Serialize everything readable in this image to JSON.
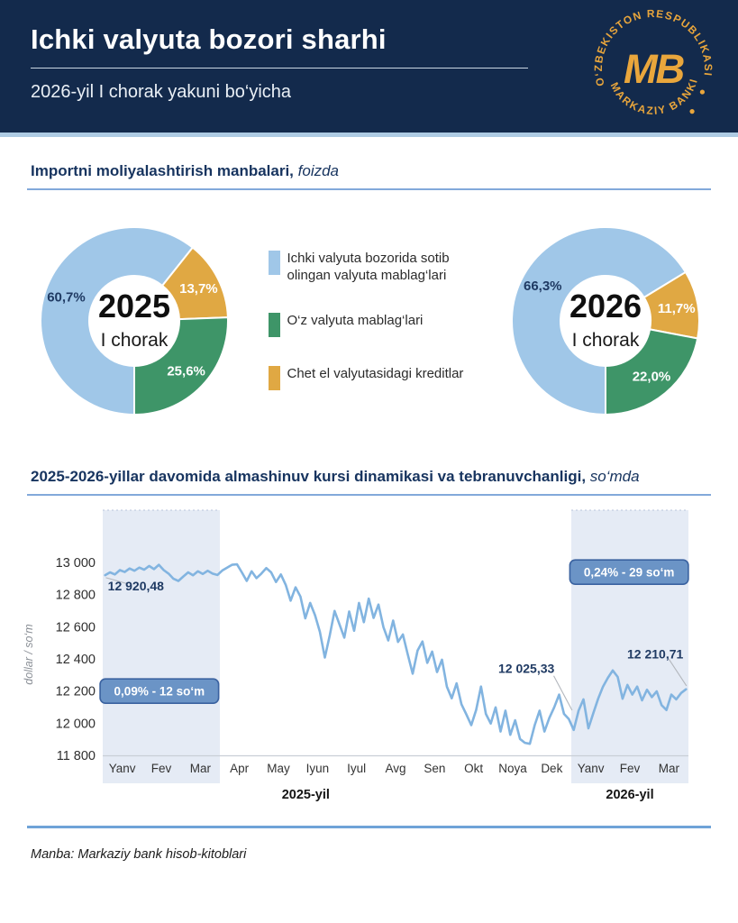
{
  "header": {
    "title": "Ichki valyuta  bozori sharhi",
    "subtitle": "2026-yil I chorak yakuni bo‘yicha",
    "logo": {
      "top_text": "O‘ZBEKISTON RESPUBLIKASI",
      "bottom_text": "MARKAZIY BANKI",
      "monogram": "MB"
    }
  },
  "colors": {
    "header_navy": "#132A4C",
    "logo_gold": "#E9A63C",
    "donut_blue": "#A0C7E8",
    "donut_green": "#3E9568",
    "donut_gold": "#E0A843",
    "line_blue": "#82B4E0",
    "band_fill": "#E5EBF5",
    "band_edge": "#B9C6DC",
    "badge_fill": "#6B94C6",
    "badge_border": "#3A62A0",
    "annotation_navy": "#1F3A63",
    "leader_gray": "#B3B7BD",
    "axis_line": "#C9CED6"
  },
  "section1": {
    "title_bold": "Importni moliyalashtirish manbalari,",
    "title_italic": "foizda",
    "legend": [
      {
        "label": "Ichki valyuta bozorida sotib olingan valyuta mablag‘lari",
        "color": "#A0C7E8"
      },
      {
        "label": "O‘z valyuta mablag‘lari",
        "color": "#3E9568"
      },
      {
        "label": "Chet el valyutasidagi kreditlar",
        "color": "#E0A843"
      }
    ]
  },
  "section2": {
    "title_bold": "2025-2026-yillar davomida almashinuv kursi dinamikasi va tebranuvchanligi,",
    "title_italic": "so‘mda"
  },
  "footer": {
    "source": "Manba: Markaziy bank hisob-kitoblari"
  },
  "chart_data": [
    {
      "type": "pie",
      "title": "2025",
      "subtitle": "I chorak",
      "start_angle_from_top": 180,
      "segments": [
        {
          "name": "Ichki valyuta bozorida sotib olingan valyuta mablag‘lari",
          "value": 60.7,
          "display": "60,7%",
          "color": "#A0C7E8",
          "label_color": "#1F3A63"
        },
        {
          "name": "Chet el valyutasidagi kreditlar",
          "value": 13.7,
          "display": "13,7%",
          "color": "#E0A843",
          "label_color": "#FFFFFF"
        },
        {
          "name": "O‘z valyuta mablag‘lari",
          "value": 25.6,
          "display": "25,6%",
          "color": "#3E9568",
          "label_color": "#FFFFFF"
        }
      ]
    },
    {
      "type": "pie",
      "title": "2026",
      "subtitle": "I chorak",
      "start_angle_from_top": 180,
      "segments": [
        {
          "name": "Ichki valyuta bozorida sotib olingan valyuta mablag‘lari",
          "value": 66.3,
          "display": "66,3%",
          "color": "#A0C7E8",
          "label_color": "#1F3A63"
        },
        {
          "name": "Chet el valyutasidagi kreditlar",
          "value": 11.7,
          "display": "11,7%",
          "color": "#E0A843",
          "label_color": "#FFFFFF"
        },
        {
          "name": "O‘z valyuta mablag‘lari",
          "value": 22.0,
          "display": "22,0%",
          "color": "#3E9568",
          "label_color": "#FFFFFF"
        }
      ]
    },
    {
      "type": "line",
      "ylabel": "dollar / so‘m",
      "ylim": [
        11800,
        13280
      ],
      "yticks": [
        {
          "v": 13000,
          "label": "13 000"
        },
        {
          "v": 12800,
          "label": "12 800"
        },
        {
          "v": 12600,
          "label": "12 600"
        },
        {
          "v": 12400,
          "label": "12 400"
        },
        {
          "v": 12200,
          "label": "12 200"
        },
        {
          "v": 12000,
          "label": "12 000"
        },
        {
          "v": 11800,
          "label": "11 800"
        }
      ],
      "months": [
        "Yanv",
        "Fev",
        "Mar",
        "Apr",
        "May",
        "Iyun",
        "Iyul",
        "Avg",
        "Sen",
        "Okt",
        "Noya",
        "Dek",
        "Yanv",
        "Fev",
        "Mar"
      ],
      "year_labels": [
        {
          "text": "2025-yil",
          "month": 5.2
        },
        {
          "text": "2026-yil",
          "month": 13.5
        }
      ],
      "bands": [
        {
          "from": 0,
          "to": 3
        },
        {
          "from": 12,
          "to": 15
        }
      ],
      "values": [
        12920.48,
        12938,
        12925,
        12952,
        12940,
        12962,
        12948,
        12968,
        12955,
        12978,
        12958,
        12985,
        12952,
        12930,
        12898,
        12885,
        12912,
        12938,
        12920,
        12945,
        12928,
        12948,
        12930,
        12922,
        12950,
        12968,
        12985,
        12988,
        12938,
        12885,
        12945,
        12902,
        12930,
        12965,
        12938,
        12878,
        12925,
        12860,
        12762,
        12845,
        12788,
        12652,
        12748,
        12672,
        12568,
        12408,
        12545,
        12698,
        12615,
        12532,
        12695,
        12575,
        12748,
        12628,
        12775,
        12655,
        12738,
        12598,
        12515,
        12638,
        12505,
        12552,
        12428,
        12308,
        12452,
        12508,
        12375,
        12445,
        12318,
        12395,
        12228,
        12155,
        12248,
        12118,
        12055,
        11988,
        12082,
        12228,
        12058,
        11998,
        12098,
        11948,
        12078,
        11928,
        12018,
        11902,
        11878,
        11872,
        11988,
        12078,
        11948,
        12032,
        12098,
        12178,
        12058,
        12025.33,
        11958,
        12078,
        12148,
        11968,
        12062,
        12152,
        12228,
        12282,
        12328,
        12288,
        12152,
        12238,
        12178,
        12228,
        12142,
        12208,
        12162,
        12198,
        12112,
        12082,
        12178,
        12148,
        12188,
        12210.71
      ],
      "annotations": [
        {
          "text": "12 920,48",
          "label_month": 0.85,
          "label_value": 12855,
          "leader": [
            [
              0.08,
              12905
            ],
            [
              0.62,
              12868
            ]
          ]
        },
        {
          "text": "12 025,33",
          "label_month": 10.85,
          "label_value": 12340,
          "leader": [
            [
              11.55,
              12295
            ],
            [
              12.02,
              12080
            ]
          ]
        },
        {
          "text": "12 210,71",
          "label_month": 14.15,
          "label_value": 12430,
          "leader": [
            [
              14.5,
              12398
            ],
            [
              14.95,
              12232
            ]
          ]
        }
      ],
      "badges": [
        {
          "text": "0,09% - 12 so‘m",
          "month": 1.45,
          "value": 12200
        },
        {
          "text": "0,24% - 29 so‘m",
          "month": 13.48,
          "value": 12940
        }
      ]
    }
  ]
}
